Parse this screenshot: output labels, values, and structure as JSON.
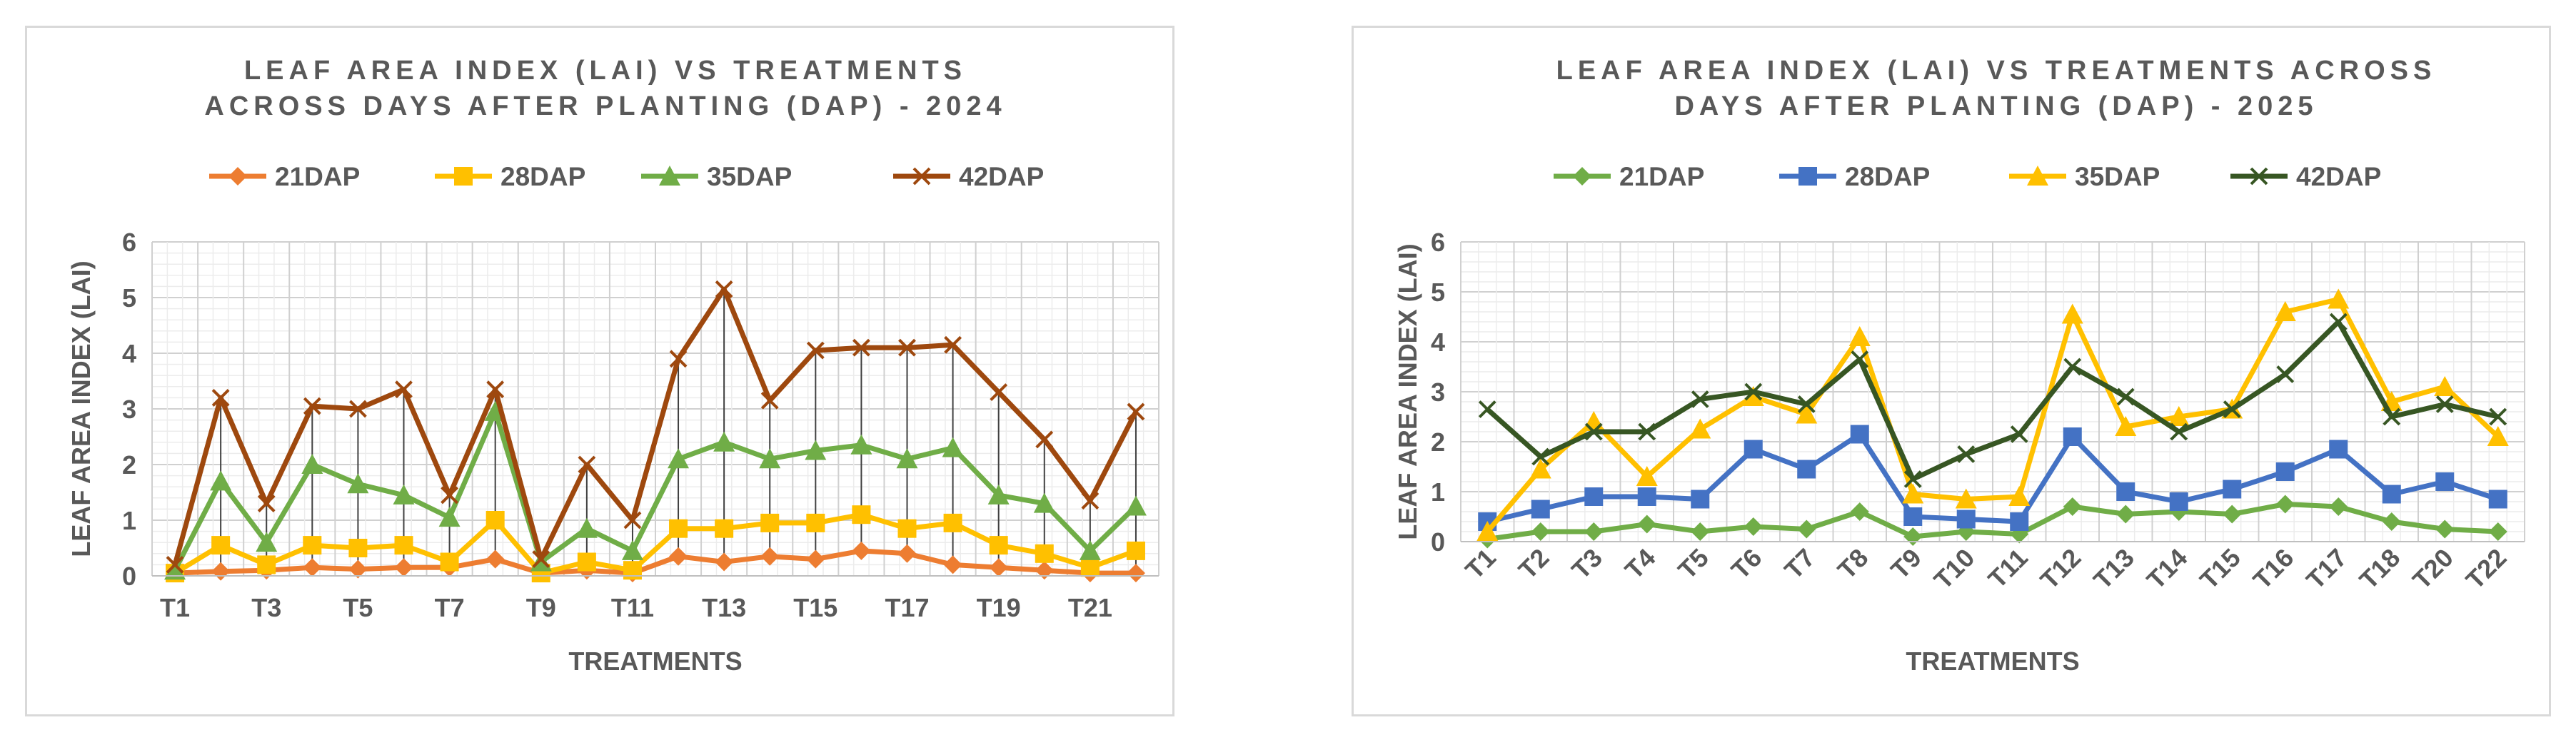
{
  "chart_data": [
    {
      "type": "line",
      "title": [
        "LEAF AREA INDEX (LAI) VS TREATMENTS",
        "ACROSS DAYS AFTER PLANTING (DAP) - 2024"
      ],
      "xlabel": "TREATMENTS",
      "ylabel": "LEAF AREA INDEX (LAI)",
      "ylim": [
        0,
        6
      ],
      "yticks": [
        "0",
        "1",
        "2",
        "3",
        "4",
        "5",
        "6"
      ],
      "grid": true,
      "drop_lines": true,
      "legend_position": "top",
      "categories": [
        "T1",
        "T2",
        "T3",
        "T4",
        "T5",
        "T6",
        "T7",
        "T8",
        "T9",
        "T10",
        "T11",
        "T12",
        "T13",
        "T14",
        "T15",
        "T16",
        "T17",
        "T18",
        "T19",
        "T20",
        "T21",
        "T22"
      ],
      "visible_tick_labels": [
        "T1",
        "T3",
        "T5",
        "T7",
        "T9",
        "T11",
        "T13",
        "T15",
        "T17",
        "T19",
        "T21"
      ],
      "tick_rotation": 0,
      "series": [
        {
          "name": "21DAP",
          "color": "#ed7d31",
          "marker": "diamond",
          "values": [
            0.05,
            0.08,
            0.1,
            0.15,
            0.12,
            0.15,
            0.15,
            0.3,
            0.05,
            0.1,
            0.05,
            0.35,
            0.25,
            0.35,
            0.3,
            0.45,
            0.4,
            0.2,
            0.15,
            0.1,
            0.05,
            0.05
          ]
        },
        {
          "name": "28DAP",
          "color": "#ffc000",
          "marker": "square",
          "values": [
            0.05,
            0.55,
            0.2,
            0.55,
            0.5,
            0.55,
            0.25,
            1.0,
            0.05,
            0.25,
            0.1,
            0.85,
            0.85,
            0.95,
            0.95,
            1.1,
            0.85,
            0.95,
            0.55,
            0.4,
            0.15,
            0.45
          ]
        },
        {
          "name": "35DAP",
          "color": "#70ad47",
          "marker": "triangle",
          "values": [
            0.1,
            1.7,
            0.6,
            2.0,
            1.65,
            1.45,
            1.05,
            2.95,
            0.25,
            0.85,
            0.45,
            2.1,
            2.4,
            2.1,
            2.25,
            2.35,
            2.1,
            2.3,
            1.45,
            1.3,
            0.45,
            1.25
          ]
        },
        {
          "name": "42DAP",
          "color": "#9e480e",
          "marker": "x",
          "values": [
            0.2,
            3.2,
            1.3,
            3.05,
            3.0,
            3.35,
            1.45,
            3.35,
            0.3,
            2.0,
            1.0,
            3.9,
            5.15,
            3.15,
            4.05,
            4.1,
            4.1,
            4.15,
            3.3,
            2.45,
            1.35,
            2.95
          ]
        }
      ]
    },
    {
      "type": "line",
      "title": [
        "LEAF AREA INDEX (LAI) VS TREATMENTS ACROSS",
        "DAYS AFTER PLANTING (DAP) - 2025"
      ],
      "xlabel": "TREATMENTS",
      "ylabel": "LEAF AREA INDEX (LAI)",
      "ylim": [
        0,
        6
      ],
      "yticks": [
        "0",
        "1",
        "2",
        "3",
        "4",
        "5",
        "6"
      ],
      "grid": true,
      "drop_lines": false,
      "legend_position": "top",
      "categories": [
        "T1",
        "T2",
        "T3",
        "T4",
        "T5",
        "T6",
        "T7",
        "T8",
        "T9",
        "T10",
        "T11",
        "T12",
        "T13",
        "T14",
        "T15",
        "T16",
        "T17",
        "T18",
        "T20",
        "T22"
      ],
      "visible_tick_labels": [
        "T1",
        "T2",
        "T3",
        "T4",
        "T5",
        "T6",
        "T7",
        "T8",
        "T9",
        "T10",
        "T11",
        "T12",
        "T13",
        "T14",
        "T15",
        "T16",
        "T17",
        "T18",
        "T20",
        "T22"
      ],
      "tick_rotation": -45,
      "series": [
        {
          "name": "21DAP",
          "color": "#70ad47",
          "marker": "diamond",
          "values": [
            0.05,
            0.2,
            0.2,
            0.35,
            0.2,
            0.3,
            0.25,
            0.6,
            0.1,
            0.2,
            0.15,
            0.7,
            0.55,
            0.6,
            0.55,
            0.75,
            0.7,
            0.4,
            0.25,
            0.2
          ]
        },
        {
          "name": "28DAP",
          "color": "#4472c4",
          "marker": "square",
          "values": [
            0.4,
            0.65,
            0.9,
            0.9,
            0.85,
            1.85,
            1.45,
            2.15,
            0.5,
            0.45,
            0.4,
            2.1,
            1.0,
            0.8,
            1.05,
            1.4,
            1.85,
            0.95,
            1.2,
            0.85
          ]
        },
        {
          "name": "35DAP",
          "color": "#ffc000",
          "marker": "triangle",
          "values": [
            0.2,
            1.45,
            2.4,
            1.3,
            2.25,
            2.9,
            2.55,
            4.1,
            0.95,
            0.85,
            0.9,
            4.55,
            2.3,
            2.5,
            2.65,
            4.6,
            4.85,
            2.8,
            3.1,
            2.1
          ]
        },
        {
          "name": "42DAP",
          "color": "#375623",
          "marker": "x",
          "values": [
            2.65,
            1.7,
            2.2,
            2.2,
            2.85,
            3.0,
            2.75,
            3.65,
            1.25,
            1.75,
            2.15,
            3.5,
            2.9,
            2.2,
            2.65,
            3.35,
            4.4,
            2.5,
            2.75,
            2.5
          ]
        }
      ]
    }
  ]
}
